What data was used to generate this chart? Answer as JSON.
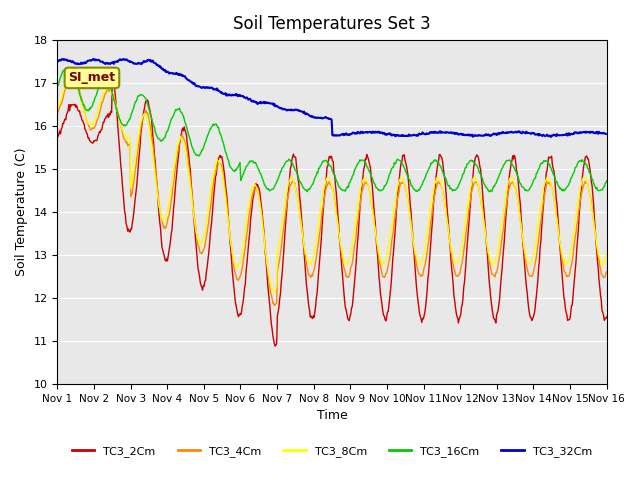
{
  "title": "Soil Temperatures Set 3",
  "xlabel": "Time",
  "ylabel": "Soil Temperature (C)",
  "ylim": [
    10.0,
    18.0
  ],
  "yticks": [
    10.0,
    11.0,
    12.0,
    13.0,
    14.0,
    15.0,
    16.0,
    17.0,
    18.0
  ],
  "xtick_labels": [
    "Nov 1",
    "Nov 2",
    "Nov 3",
    "Nov 4",
    "Nov 5",
    "Nov 6",
    "Nov 7",
    "Nov 8",
    "Nov 9",
    "Nov 10",
    "Nov 11",
    "Nov 12",
    "Nov 13",
    "Nov 14",
    "Nov 15",
    "Nov 16"
  ],
  "colors": {
    "TC3_2Cm": "#cc0000",
    "TC3_4Cm": "#ff8800",
    "TC3_8Cm": "#ffff00",
    "TC3_16Cm": "#00cc00",
    "TC3_32Cm": "#0000cc"
  },
  "legend_labels": [
    "TC3_2Cm",
    "TC3_4Cm",
    "TC3_8Cm",
    "TC3_16Cm",
    "TC3_32Cm"
  ],
  "annotation_text": "SI_met",
  "plot_bg_color": "#e8e8e8",
  "n_points": 720,
  "days": 15
}
